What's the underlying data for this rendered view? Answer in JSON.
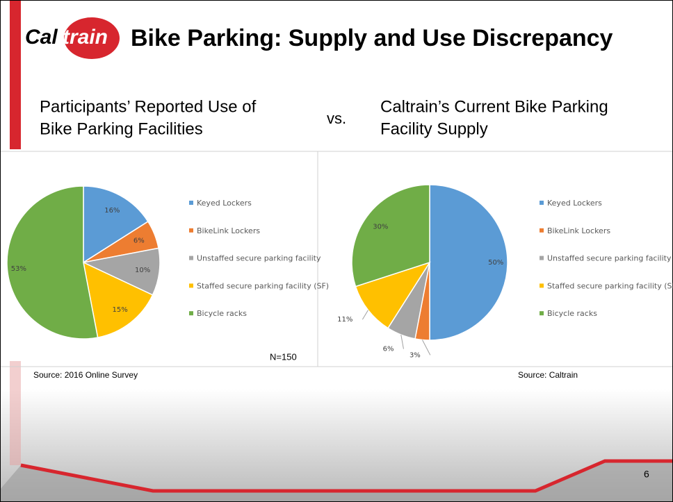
{
  "header": {
    "logo_parts": [
      "Cal",
      "train"
    ],
    "title": "Bike Parking: Supply and Use Discrepancy"
  },
  "vs": "vs.",
  "chart_data": [
    {
      "type": "pie",
      "title_lines": [
        "Participants’ Reported Use of",
        "Bike Parking Facilities"
      ],
      "categories": [
        "Keyed Lockers",
        "BikeLink Lockers",
        "Unstaffed secure parking facility",
        "Staffed secure parking facility (SF)",
        "Bicycle racks"
      ],
      "values": [
        16,
        6,
        10,
        15,
        53
      ],
      "value_labels": [
        "16%",
        "6%",
        "10%",
        "15%",
        "53%"
      ],
      "colors": [
        "#5b9bd5",
        "#ed7d31",
        "#a5a5a5",
        "#ffc000",
        "#70ad47"
      ],
      "note": "N=150",
      "source": "Source: 2016 Online Survey"
    },
    {
      "type": "pie",
      "title_lines": [
        "Caltrain’s Current Bike Parking",
        "Facility Supply"
      ],
      "categories": [
        "Keyed Lockers",
        "BikeLink Lockers",
        "Unstaffed secure parking facility",
        "Staffed secure parking facility (SF)",
        "Bicycle racks"
      ],
      "values": [
        50,
        3,
        6,
        11,
        30
      ],
      "value_labels": [
        "50%",
        "3%",
        "6%",
        "11%",
        "30%"
      ],
      "colors": [
        "#5b9bd5",
        "#ed7d31",
        "#a5a5a5",
        "#ffc000",
        "#70ad47"
      ],
      "source": "Source: Caltrain"
    }
  ],
  "page_number": "6"
}
